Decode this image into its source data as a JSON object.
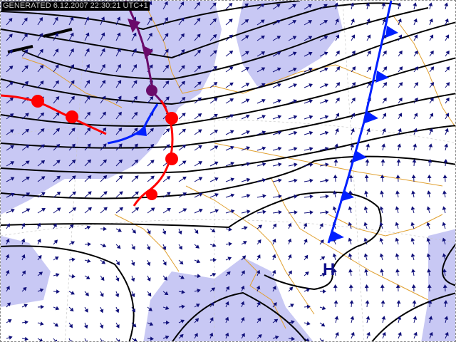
{
  "header": {
    "generated": "GENERATED 6.12.2007 22:30:21 UTC+1"
  },
  "pressure_centers": [
    {
      "label": "H"
    }
  ],
  "colors": {
    "precipitation": "#c8c8f4",
    "coastline": "#e0a030",
    "isobar": "#000000",
    "wind_arrow": "#10107a",
    "warm_front": "#ff0000",
    "cold_front": "#0020ff",
    "occluded_front": "#6a0a6a"
  },
  "legend_items": [
    "warm-front",
    "cold-front",
    "occluded-front",
    "isobars",
    "wind-vectors",
    "precipitation"
  ]
}
